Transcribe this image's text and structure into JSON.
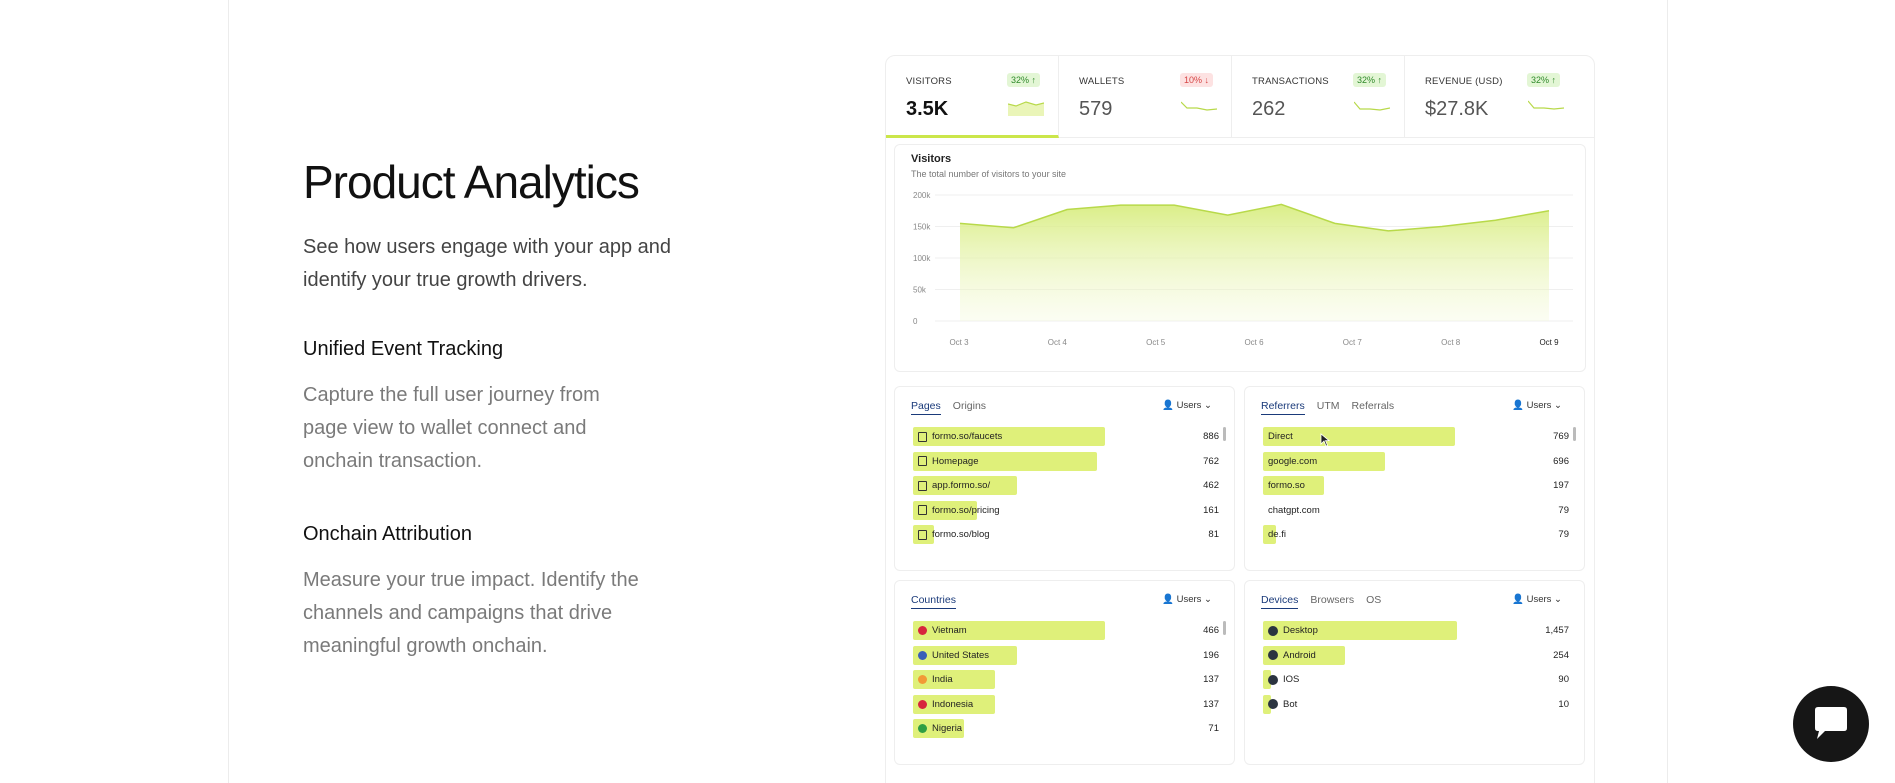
{
  "hero": {
    "title": "Product Analytics",
    "lead": "See how users engage with your app and identify your true growth drivers."
  },
  "features": [
    {
      "title": "Unified Event Tracking",
      "desc": "Capture the full user journey from page view to wallet connect and onchain transaction."
    },
    {
      "title": "Onchain Attribution",
      "desc": "Measure your true impact. Identify the channels and campaigns that drive meaningful growth onchain."
    }
  ],
  "stats": [
    {
      "label": "VISITORS",
      "value": "3.5K",
      "delta": "32% ↑",
      "trend": "up"
    },
    {
      "label": "WALLETS",
      "value": "579",
      "delta": "10% ↓",
      "trend": "down"
    },
    {
      "label": "TRANSACTIONS",
      "value": "262",
      "delta": "32% ↑",
      "trend": "up"
    },
    {
      "label": "REVENUE (USD)",
      "value": "$27.8K",
      "delta": "32% ↑",
      "trend": "up"
    }
  ],
  "chart_data": {
    "type": "area",
    "title": "Visitors",
    "subtitle": "The total number of visitors to your site",
    "x_ticks": [
      "Oct 3",
      "Oct 4",
      "Oct 5",
      "Oct 6",
      "Oct 7",
      "Oct 8",
      "Oct 9"
    ],
    "y_ticks": [
      "200k",
      "150k",
      "100k",
      "50k",
      "0"
    ],
    "ylim": [
      0,
      200000
    ],
    "values": [
      155000,
      148000,
      177000,
      184000,
      184000,
      168000,
      185000,
      155000,
      143000,
      150000,
      160000,
      175000
    ],
    "grid": true,
    "color": "#b8d94a"
  },
  "panels": {
    "pages": {
      "tabs": [
        "Pages",
        "Origins"
      ],
      "metric": "Users",
      "rows": [
        {
          "label": "formo.so/faucets",
          "value": "886",
          "pct": 0.72,
          "icon": "page-icon"
        },
        {
          "label": "Homepage",
          "value": "762",
          "pct": 0.69,
          "icon": "home-icon"
        },
        {
          "label": "app.formo.so/",
          "value": "462",
          "pct": 0.39,
          "icon": "page-icon"
        },
        {
          "label": "formo.so/pricing",
          "value": "161",
          "pct": 0.24,
          "icon": "page-icon"
        },
        {
          "label": "formo.so/blog",
          "value": "81",
          "pct": 0.08,
          "icon": "page-icon"
        }
      ]
    },
    "referrers": {
      "tabs": [
        "Referrers",
        "UTM",
        "Referrals"
      ],
      "metric": "Users",
      "rows": [
        {
          "label": "Direct",
          "value": "769",
          "pct": 0.72
        },
        {
          "label": "google.com",
          "value": "696",
          "pct": 0.46
        },
        {
          "label": "formo.so",
          "value": "197",
          "pct": 0.23
        },
        {
          "label": "chatgpt.com",
          "value": "79",
          "pct": 0.0
        },
        {
          "label": "de.fi",
          "value": "79",
          "pct": 0.05
        }
      ]
    },
    "countries": {
      "tabs": [
        "Countries"
      ],
      "metric": "Users",
      "rows": [
        {
          "label": "Vietnam",
          "value": "466",
          "pct": 0.72,
          "flag": "#d7263d"
        },
        {
          "label": "United States",
          "value": "196",
          "pct": 0.39,
          "flag": "#3a5fb8"
        },
        {
          "label": "India",
          "value": "137",
          "pct": 0.31,
          "flag": "#f29a36"
        },
        {
          "label": "Indonesia",
          "value": "137",
          "pct": 0.31,
          "flag": "#d7263d"
        },
        {
          "label": "Nigeria",
          "value": "71",
          "pct": 0.19,
          "flag": "#2f9e44"
        }
      ]
    },
    "devices": {
      "tabs": [
        "Devices",
        "Browsers",
        "OS"
      ],
      "metric": "Users",
      "rows": [
        {
          "label": "Desktop",
          "value": "1,457",
          "pct": 0.73
        },
        {
          "label": "Android",
          "value": "254",
          "pct": 0.31
        },
        {
          "label": "IOS",
          "value": "90",
          "pct": 0.03
        },
        {
          "label": "Bot",
          "value": "10",
          "pct": 0.03
        }
      ]
    }
  }
}
